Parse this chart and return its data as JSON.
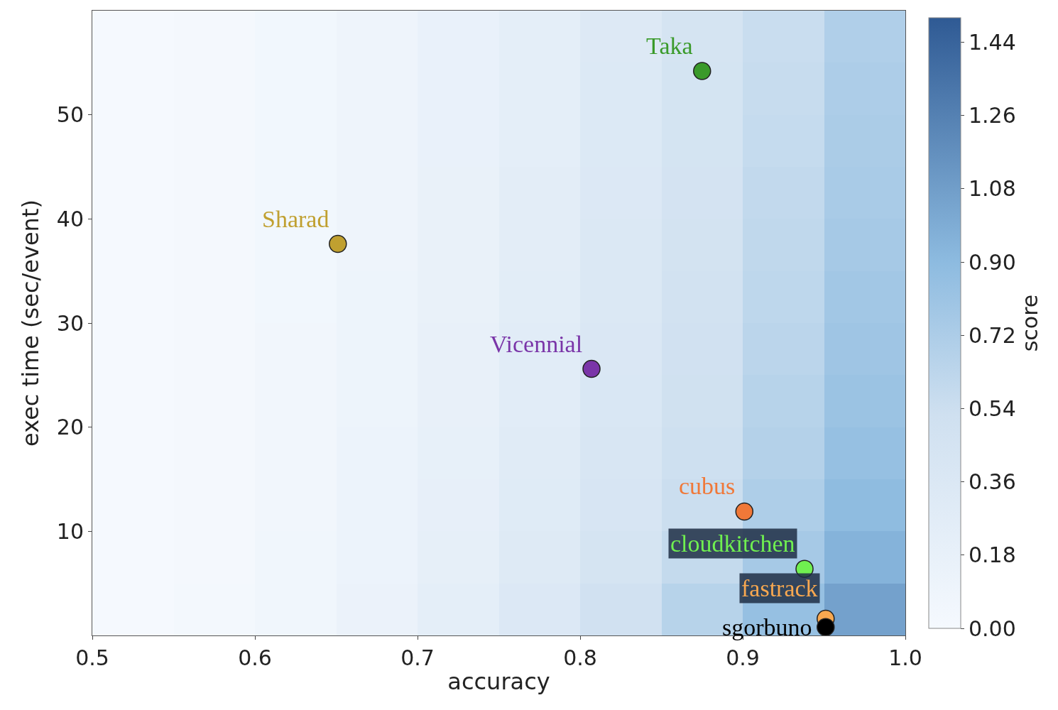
{
  "chart_data": [
    {
      "type": "heatmap",
      "clabel": "score",
      "clim": [
        0,
        1.5
      ],
      "cticks": [
        {
          "value": 0,
          "label": "0.00"
        },
        0.18,
        0.36,
        0.54,
        0.72,
        {
          "value": 0.9,
          "label": "0.90"
        },
        1.08,
        1.26,
        1.44
      ],
      "categories": [
        null,
        null,
        null,
        null,
        null,
        null,
        null,
        null,
        null,
        null
      ],
      "y_categories": [
        null,
        null,
        null,
        null,
        null,
        null,
        null,
        null,
        null,
        null,
        null,
        null
      ],
      "cells": [
        [
          0,
          0.02,
          0.05,
          0.1,
          0.16,
          0.24,
          0.33,
          0.44,
          0.56,
          0.7
        ],
        [
          0,
          0.02,
          0.05,
          0.1,
          0.16,
          0.24,
          0.34,
          0.45,
          0.57,
          0.72
        ],
        [
          0,
          0.02,
          0.05,
          0.1,
          0.16,
          0.24,
          0.34,
          0.45,
          0.58,
          0.73
        ],
        [
          0,
          0.02,
          0.05,
          0.1,
          0.17,
          0.25,
          0.35,
          0.46,
          0.6,
          0.74
        ],
        [
          0,
          0.02,
          0.05,
          0.1,
          0.17,
          0.25,
          0.36,
          0.47,
          0.61,
          0.76
        ],
        [
          0,
          0.02,
          0.05,
          0.11,
          0.17,
          0.26,
          0.36,
          0.48,
          0.62,
          0.78
        ],
        [
          0,
          0.02,
          0.06,
          0.11,
          0.18,
          0.27,
          0.37,
          0.5,
          0.64,
          0.8
        ],
        [
          0,
          0.02,
          0.06,
          0.11,
          0.18,
          0.28,
          0.38,
          0.51,
          0.66,
          0.82
        ],
        [
          0,
          0.02,
          0.06,
          0.12,
          0.19,
          0.29,
          0.4,
          0.53,
          0.68,
          0.85
        ],
        [
          0,
          0.02,
          0.06,
          0.12,
          0.2,
          0.3,
          0.42,
          0.55,
          0.71,
          0.89
        ],
        [
          0,
          0.02,
          0.07,
          0.13,
          0.21,
          0.32,
          0.44,
          0.59,
          0.76,
          0.95
        ],
        [
          0,
          0.03,
          0.07,
          0.14,
          0.24,
          0.35,
          0.5,
          0.66,
          0.85,
          1.06
        ]
      ]
    },
    {
      "type": "scatter",
      "xlabel": "accuracy",
      "ylabel": "exec time (sec/event)",
      "xlim": [
        0.5,
        1.0
      ],
      "xticks": [
        0.5,
        0.6,
        0.7,
        0.8,
        0.9,
        {
          "value": 1.0,
          "label": "1.0"
        }
      ],
      "ylim": [
        0,
        60
      ],
      "yticks": [
        10,
        20,
        30,
        40,
        50
      ],
      "legend": false,
      "marker": "circle",
      "series": [
        {
          "name": "Taka",
          "color": "#3a9a2a",
          "x": [
            0.875
          ],
          "values": [
            54.2
          ]
        },
        {
          "name": "Sharad",
          "color": "#c0a030",
          "x": [
            0.651
          ],
          "values": [
            37.6
          ]
        },
        {
          "name": "Vicennial",
          "color": "#7a35a8",
          "x": [
            0.807
          ],
          "values": [
            25.6
          ]
        },
        {
          "name": "cubus",
          "color": "#f07838",
          "x": [
            0.901
          ],
          "values": [
            11.9
          ]
        },
        {
          "name": "cloudkitchen",
          "color": "#70f050",
          "x": [
            0.938
          ],
          "values": [
            6.4
          ]
        },
        {
          "name": "fastrack",
          "color": "#f8a850",
          "x": [
            0.951
          ],
          "values": [
            1.6
          ]
        },
        {
          "name": "sgorbuno",
          "color": "#000000",
          "x": [
            0.951
          ],
          "values": [
            0.8
          ]
        }
      ]
    }
  ]
}
